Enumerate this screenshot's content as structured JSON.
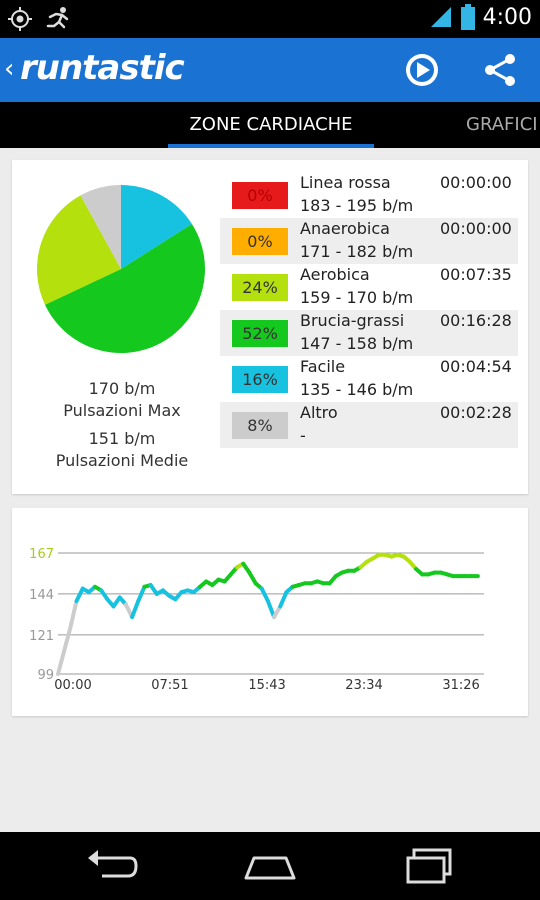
{
  "status_bar": {
    "time": "4:00",
    "icons": [
      "gps-icon",
      "runner-icon",
      "signal-icon",
      "battery-icon"
    ]
  },
  "action_bar": {
    "back_glyph": "‹",
    "logo_text": "runtastic",
    "actions": [
      "play-icon",
      "share-icon"
    ],
    "color": "#1a73d3"
  },
  "tabs": [
    {
      "label": "ZONE CARDIACHE",
      "selected": true
    },
    {
      "label": "GRAFICI",
      "selected": false
    }
  ],
  "stats": {
    "max_value": "170 b/m",
    "max_label": "Pulsazioni Max",
    "avg_value": "151 b/m",
    "avg_label": "Pulsazioni Medie"
  },
  "zones": [
    {
      "percent_label": "0%",
      "percent": 0,
      "name": "Linea rossa",
      "range": "183 - 195 b/m",
      "time": "00:00:00",
      "color": "#e61a1a",
      "text_color": "#b30000"
    },
    {
      "percent_label": "0%",
      "percent": 0,
      "name": "Anaerobica",
      "range": "171 - 182 b/m",
      "time": "00:00:00",
      "color": "#ffae00",
      "text_color": "#333333"
    },
    {
      "percent_label": "24%",
      "percent": 24,
      "name": "Aerobica",
      "range": "159 - 170 b/m",
      "time": "00:07:35",
      "color": "#b4e00e",
      "text_color": "#333333"
    },
    {
      "percent_label": "52%",
      "percent": 52,
      "name": "Brucia-grassi",
      "range": "147 - 158 b/m",
      "time": "00:16:28",
      "color": "#14c81e",
      "text_color": "#333333"
    },
    {
      "percent_label": "16%",
      "percent": 16,
      "name": "Facile",
      "range": "135 - 146 b/m",
      "time": "00:04:54",
      "color": "#17c2e0",
      "text_color": "#333333"
    },
    {
      "percent_label": "8%",
      "percent": 8,
      "name": "Altro",
      "range": "-",
      "time": "00:02:28",
      "color": "#cccccc",
      "text_color": "#333333"
    }
  ],
  "chart_data": {
    "type": "line",
    "y_ticks": [
      "167",
      "144",
      "121",
      "99"
    ],
    "y_tick_values": [
      167,
      144,
      121,
      99
    ],
    "x_ticks": [
      "00:00",
      "07:51",
      "15:43",
      "23:34",
      "31:26"
    ],
    "x_tick_values": [
      0,
      7.85,
      15.72,
      23.57,
      31.43
    ],
    "ylim": [
      99,
      167
    ],
    "xlim": [
      0,
      34.5
    ],
    "grid": true,
    "series": [
      {
        "x": [
          0,
          0.5,
          1,
          1.5,
          2,
          2.5,
          3,
          3.5,
          4,
          4.5,
          5,
          5.5,
          6,
          6.5,
          7,
          7.5,
          8,
          8.5,
          9,
          9.5,
          10,
          10.5,
          11,
          11.5,
          12,
          12.5,
          13,
          13.5,
          14,
          14.5,
          15,
          15.5,
          16,
          16.5,
          17,
          17.5,
          18,
          18.5,
          19,
          19.5,
          20,
          20.5,
          21,
          21.5,
          22,
          22.5,
          23,
          23.5,
          24,
          24.5,
          25,
          25.5,
          26,
          26.5,
          27,
          27.5,
          28,
          28.5,
          29,
          29.5,
          30,
          30.5,
          31,
          31.5,
          32,
          32.5,
          33,
          33.5,
          34
        ],
        "y": [
          99,
          112,
          125,
          140,
          147,
          145,
          148,
          146,
          141,
          137,
          142,
          138,
          131,
          140,
          148,
          149,
          144,
          146,
          143,
          141,
          145,
          146,
          145,
          148,
          151,
          149,
          152,
          151,
          155,
          159,
          161,
          156,
          150,
          147,
          140,
          131,
          137,
          145,
          148,
          149,
          150,
          150,
          151,
          150,
          150,
          154,
          156,
          157,
          157,
          159,
          162,
          164,
          166,
          166,
          165,
          166,
          165,
          162,
          158,
          155,
          155,
          156,
          156,
          155,
          154,
          154,
          154,
          154,
          154
        ]
      }
    ]
  }
}
